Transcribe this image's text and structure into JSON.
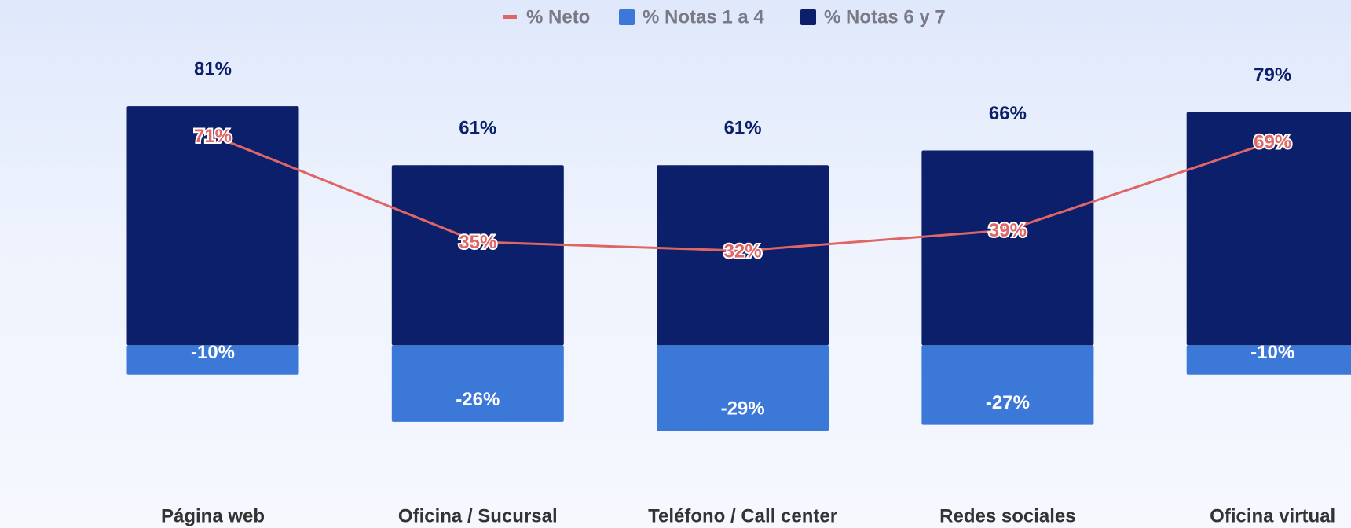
{
  "chart_data": {
    "type": "bar",
    "categories": [
      "Página web",
      "Oficina / Sucursal",
      "Teléfono / Call center",
      "Redes sociales",
      "Oficina virtual"
    ],
    "series": [
      {
        "name": "% Neto",
        "type": "line",
        "color": "#e06666",
        "values": [
          71,
          35,
          32,
          39,
          69
        ],
        "value_labels": [
          "71%",
          "35%",
          "32%",
          "39%",
          "69%"
        ]
      },
      {
        "name": "% Notas 1 a 4",
        "type": "bar",
        "color": "#3c78d8",
        "values": [
          -10,
          -26,
          -29,
          -27,
          -10
        ],
        "value_labels": [
          "-10%",
          "-26%",
          "-29%",
          "-27%",
          "-10%"
        ]
      },
      {
        "name": "% Notas 6 y 7",
        "type": "bar",
        "color": "#0b1f6b",
        "values": [
          81,
          61,
          61,
          66,
          79
        ],
        "value_labels": [
          "81%",
          "61%",
          "61%",
          "66%",
          "79%"
        ]
      }
    ],
    "ylim": [
      -62,
      117
    ],
    "legend": "top"
  }
}
